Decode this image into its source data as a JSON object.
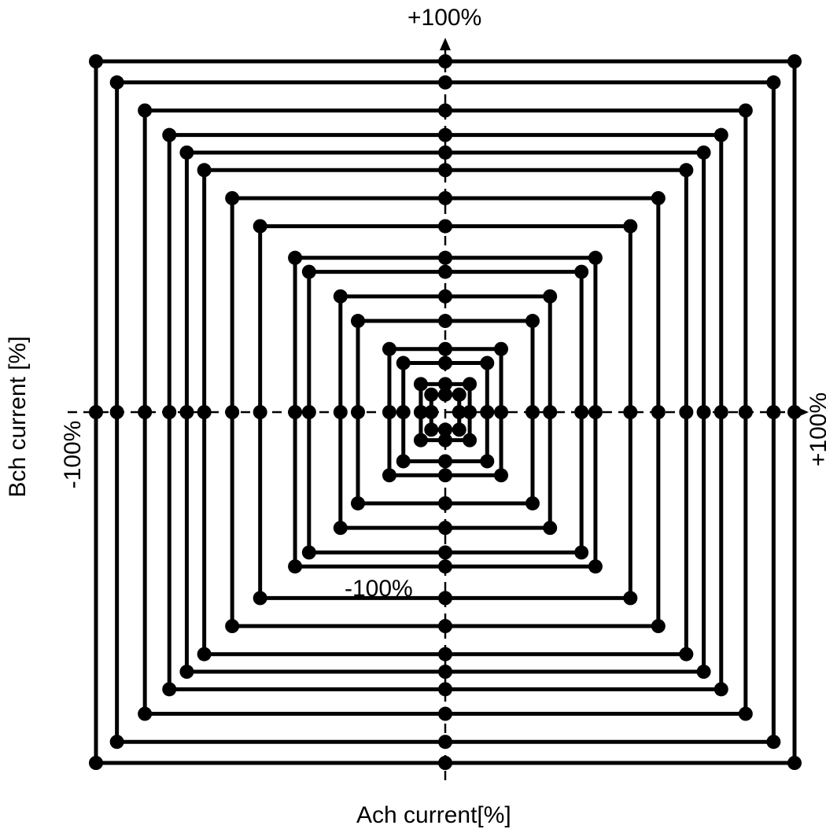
{
  "labels": {
    "y_max": "+100%",
    "y_min": "-100%",
    "x_max": "+100%",
    "x_min": "-100%",
    "x_title": "Ach current[%]",
    "y_title": "Bch current [%]"
  },
  "colors": {
    "line": "#000000",
    "axis": "#000000",
    "background": "#ffffff"
  },
  "loops": [
    {
      "hx": 4,
      "hy": 5,
      "dir": "cw"
    },
    {
      "hx": 7,
      "hy": 8,
      "dir": "ccw"
    },
    {
      "hx": 12,
      "hy": 14,
      "dir": "cw"
    },
    {
      "hx": 16,
      "hy": 18,
      "dir": "ccw"
    },
    {
      "hx": 25,
      "hy": 26,
      "dir": "cw"
    },
    {
      "hx": 30,
      "hy": 33,
      "dir": "ccw"
    },
    {
      "hx": 39,
      "hy": 40,
      "dir": "cw"
    },
    {
      "hx": 43,
      "hy": 44,
      "dir": "ccw"
    },
    {
      "hx": 53,
      "hy": 53,
      "dir": "cw"
    },
    {
      "hx": 61,
      "hy": 61,
      "dir": "ccw"
    },
    {
      "hx": 69,
      "hy": 69,
      "dir": "cw"
    },
    {
      "hx": 74,
      "hy": 74,
      "dir": "ccw"
    },
    {
      "hx": 79,
      "hy": 79,
      "dir": "cw"
    },
    {
      "hx": 86,
      "hy": 86,
      "dir": "ccw"
    },
    {
      "hx": 94,
      "hy": 94,
      "dir": "cw"
    },
    {
      "hx": 100,
      "hy": 100,
      "dir": "ccw"
    }
  ]
}
